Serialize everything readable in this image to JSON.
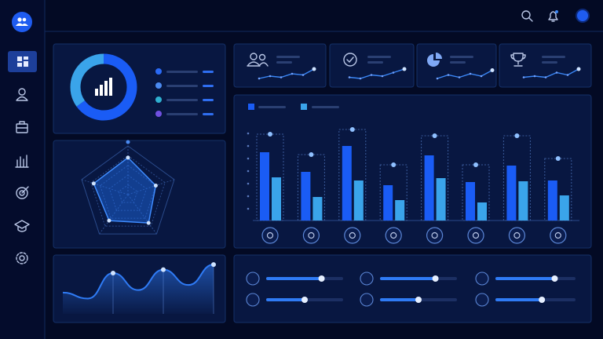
{
  "chart_data": [
    {
      "type": "pie",
      "donut": true,
      "values": [
        65,
        35
      ],
      "colors": [
        "#1a5cf5",
        "#3aa4ea"
      ]
    },
    {
      "type": "radar",
      "values": [
        76,
        60,
        72,
        66,
        74
      ],
      "rlim": [
        0,
        100
      ],
      "color": "#1e6ef0"
    },
    {
      "type": "area",
      "values": [
        25,
        18,
        48,
        28,
        52,
        34,
        58
      ],
      "ylim": [
        0,
        60
      ],
      "color": "#2f7bf5"
    },
    {
      "type": "line",
      "values": [
        2,
        4,
        3,
        6,
        5,
        10
      ],
      "ylim": [
        0,
        12
      ],
      "color": "#3a86f5"
    },
    {
      "type": "line",
      "values": [
        3,
        2,
        5,
        4,
        7,
        10
      ],
      "ylim": [
        0,
        12
      ],
      "color": "#3a86f5"
    },
    {
      "type": "line",
      "values": [
        2,
        5,
        3,
        6,
        4,
        9
      ],
      "ylim": [
        0,
        12
      ],
      "color": "#3a86f5"
    },
    {
      "type": "line",
      "values": [
        3,
        4,
        3,
        7,
        5,
        10
      ],
      "ylim": [
        0,
        12
      ],
      "color": "#3a86f5"
    },
    {
      "type": "bar",
      "categories": [
        null,
        null,
        null,
        null,
        null,
        null,
        null,
        null
      ],
      "ylim": [
        0,
        120
      ],
      "series": [
        {
          "color": "#1a5cf5",
          "values": [
            87,
            62,
            95,
            45,
            83,
            49,
            70,
            51
          ]
        },
        {
          "color": "#3aa4ea",
          "values": [
            55,
            30,
            51,
            26,
            54,
            23,
            50,
            32
          ]
        },
        {
          "color": "#8fc0ff",
          "values": [
            110,
            84,
            116,
            71,
            108,
            71,
            108,
            79
          ]
        }
      ]
    },
    {
      "type": "slider",
      "values": [
        72,
        72,
        74,
        50,
        50,
        58
      ],
      "xlim": [
        0,
        100
      ],
      "color": "#2f7bf5"
    }
  ]
}
